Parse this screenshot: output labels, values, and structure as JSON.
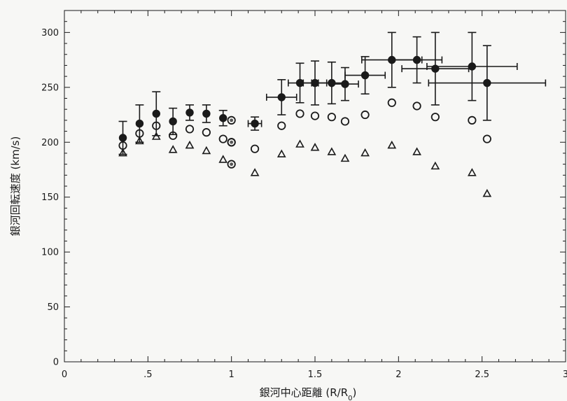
{
  "chart_data": {
    "type": "scatter",
    "xlabel": "銀河中心距離 (R/R",
    "xlabel_sub": "0",
    "xlabel_end": ")",
    "ylabel": "銀河回転速度 (km/s)",
    "xlim": [
      0,
      3
    ],
    "ylim": [
      0,
      320
    ],
    "x_ticks": [
      0,
      0.5,
      1,
      1.5,
      2,
      2.5,
      3
    ],
    "x_tick_labels": [
      "0",
      ".5",
      "1",
      "1.5",
      "2",
      "2.5",
      "3"
    ],
    "y_ticks": [
      0,
      50,
      100,
      150,
      200,
      250,
      300
    ],
    "y_tick_labels": [
      "0",
      "50",
      "100",
      "150",
      "200",
      "250",
      "300"
    ],
    "grid": false,
    "series": [
      {
        "marker": "filled-circle",
        "points": [
          {
            "x": 0.35,
            "y": 204,
            "yerr": [
              15,
              15
            ]
          },
          {
            "x": 0.45,
            "y": 217,
            "yerr": [
              17,
              17
            ]
          },
          {
            "x": 0.55,
            "y": 226,
            "yerr": [
              20,
              20
            ]
          },
          {
            "x": 0.65,
            "y": 219,
            "yerr": [
              12,
              12
            ]
          },
          {
            "x": 0.75,
            "y": 227,
            "yerr": [
              7,
              7
            ]
          },
          {
            "x": 0.85,
            "y": 226,
            "yerr": [
              8,
              8
            ]
          },
          {
            "x": 0.95,
            "y": 222,
            "yerr": [
              7,
              7
            ]
          },
          {
            "x": 1.14,
            "y": 217,
            "yerr": [
              6,
              6
            ],
            "xerr": [
              0.04,
              0.04
            ]
          },
          {
            "x": 1.3,
            "y": 241,
            "yerr": [
              16,
              16
            ],
            "xerr": [
              0.09,
              0.09
            ]
          },
          {
            "x": 1.41,
            "y": 254,
            "yerr": [
              18,
              18
            ],
            "xerr": [
              0.07,
              0.07
            ]
          },
          {
            "x": 1.5,
            "y": 254,
            "yerr": [
              20,
              20
            ],
            "xerr": [
              0.07,
              0.07
            ]
          },
          {
            "x": 1.6,
            "y": 254,
            "yerr": [
              19,
              19
            ],
            "xerr": [
              0.08,
              0.08
            ]
          },
          {
            "x": 1.68,
            "y": 253,
            "yerr": [
              15,
              15
            ],
            "xerr": [
              0.08,
              0.08
            ]
          },
          {
            "x": 1.8,
            "y": 261,
            "yerr": [
              17,
              17
            ],
            "xerr": [
              0.12,
              0.12
            ]
          },
          {
            "x": 1.96,
            "y": 275,
            "yerr": [
              25,
              25
            ],
            "xerr": [
              0.18,
              0.18
            ]
          },
          {
            "x": 2.11,
            "y": 275,
            "yerr": [
              21,
              21
            ],
            "xerr": [
              0.15,
              0.15
            ]
          },
          {
            "x": 2.22,
            "y": 267,
            "yerr": [
              33,
              33
            ],
            "xerr": [
              0.2,
              0.2
            ]
          },
          {
            "x": 2.44,
            "y": 269,
            "yerr": [
              31,
              31
            ],
            "xerr": [
              0.27,
              0.27
            ]
          },
          {
            "x": 2.53,
            "y": 254,
            "yerr": [
              34,
              34
            ],
            "xerr": [
              0.35,
              0.35
            ]
          }
        ]
      },
      {
        "marker": "open-circle",
        "points": [
          {
            "x": 0.35,
            "y": 197
          },
          {
            "x": 0.45,
            "y": 208
          },
          {
            "x": 0.55,
            "y": 215
          },
          {
            "x": 0.65,
            "y": 206
          },
          {
            "x": 0.75,
            "y": 212
          },
          {
            "x": 0.85,
            "y": 209
          },
          {
            "x": 0.95,
            "y": 203
          },
          {
            "x": 1.0,
            "y": 200
          },
          {
            "x": 1.14,
            "y": 194
          },
          {
            "x": 1.3,
            "y": 215
          },
          {
            "x": 1.41,
            "y": 226
          },
          {
            "x": 1.5,
            "y": 224
          },
          {
            "x": 1.6,
            "y": 223
          },
          {
            "x": 1.68,
            "y": 219
          },
          {
            "x": 1.8,
            "y": 225
          },
          {
            "x": 1.96,
            "y": 236
          },
          {
            "x": 2.11,
            "y": 233
          },
          {
            "x": 2.22,
            "y": 223
          },
          {
            "x": 2.44,
            "y": 220
          },
          {
            "x": 2.53,
            "y": 203
          }
        ]
      },
      {
        "marker": "open-triangle",
        "points": [
          {
            "x": 0.35,
            "y": 190
          },
          {
            "x": 0.45,
            "y": 201
          },
          {
            "x": 0.55,
            "y": 205
          },
          {
            "x": 0.65,
            "y": 193
          },
          {
            "x": 0.75,
            "y": 197
          },
          {
            "x": 0.85,
            "y": 192
          },
          {
            "x": 0.95,
            "y": 184
          },
          {
            "x": 1.14,
            "y": 172
          },
          {
            "x": 1.3,
            "y": 189
          },
          {
            "x": 1.41,
            "y": 198
          },
          {
            "x": 1.5,
            "y": 195
          },
          {
            "x": 1.6,
            "y": 191
          },
          {
            "x": 1.68,
            "y": 185
          },
          {
            "x": 1.8,
            "y": 190
          },
          {
            "x": 1.96,
            "y": 197
          },
          {
            "x": 2.11,
            "y": 191
          },
          {
            "x": 2.22,
            "y": 178
          },
          {
            "x": 2.44,
            "y": 172
          },
          {
            "x": 2.53,
            "y": 153
          }
        ]
      },
      {
        "marker": "dotted-circle",
        "points": [
          {
            "x": 1.0,
            "y": 220
          },
          {
            "x": 1.0,
            "y": 200
          },
          {
            "x": 1.0,
            "y": 180
          }
        ]
      }
    ]
  }
}
